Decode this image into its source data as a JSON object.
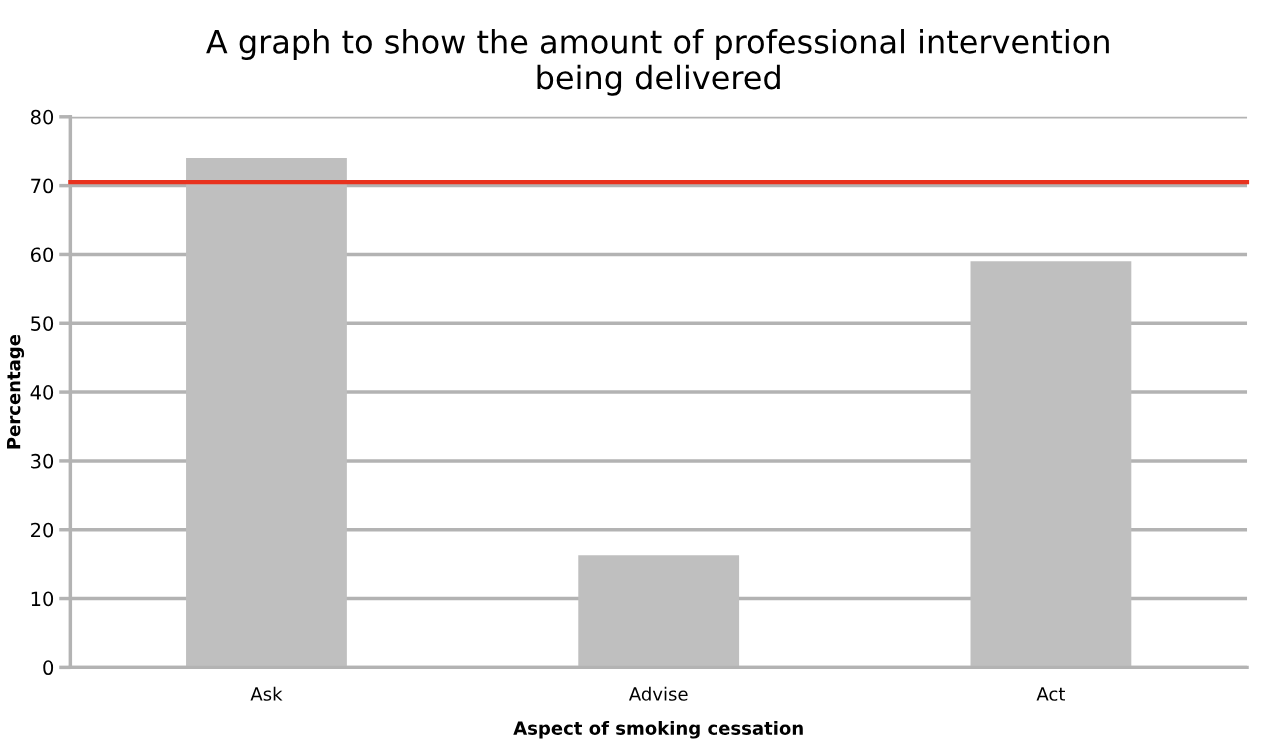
{
  "chart_data": {
    "type": "bar",
    "title": "A graph to show the amount of professional intervention\nbeing delivered",
    "xlabel": "Aspect of smoking cessation",
    "ylabel": "Percentage",
    "categories": [
      "Ask",
      "Advise",
      "Act"
    ],
    "values": [
      74,
      16.3,
      59
    ],
    "color": "#bfbfbf",
    "ylim": [
      0,
      80
    ],
    "yticks": [
      0,
      10,
      20,
      30,
      40,
      50,
      60,
      70,
      80
    ],
    "grid": "y",
    "ref_lines": [
      {
        "axis": "y",
        "value": 70.5,
        "color": "#e8321e"
      }
    ]
  }
}
